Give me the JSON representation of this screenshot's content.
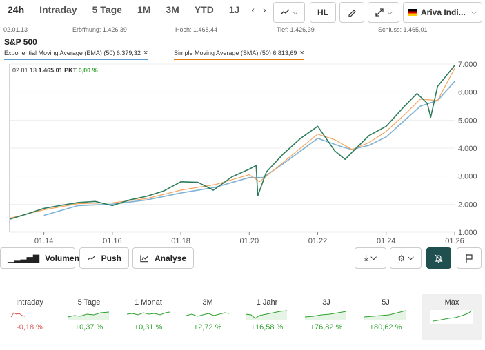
{
  "ranges": [
    "24h",
    "Intraday",
    "5 Tage",
    "1M",
    "3M",
    "YTD",
    "1J"
  ],
  "range_arrows": "‹ ›",
  "toolbar": {
    "hl_label": "HL",
    "exchange_label": "Ariva Indi..."
  },
  "info": {
    "date": "02.01.13",
    "open": "Eröffnung: 1.426,39",
    "high": "Hoch: 1.468,44",
    "low": "Tief: 1.426,39",
    "close": "Schluss: 1.465,01"
  },
  "index_name": "S&P 500",
  "indicators": {
    "ema": "Exponential Moving Average (EMA) (50) 6.379,32",
    "sma": "Simple Moving Average (SMA) (50) 6.813,69",
    "close_x": "×"
  },
  "hover": {
    "date": "02.01.13",
    "value": "1.465,01 PKT",
    "change": "0,00 %"
  },
  "colors": {
    "price": "#2e7d5b",
    "ema": "#7fb3d5",
    "sma": "#f5a35c",
    "positive": "#2ca02c",
    "negative": "#d9534f",
    "dark_button": "#1f4f4f"
  },
  "chart_data": {
    "type": "line",
    "x_ticks": [
      "01.14",
      "01.16",
      "01.18",
      "01.20",
      "01.22",
      "01.24",
      "01.26"
    ],
    "y_ticks": [
      "1.000",
      "2.000",
      "3.000",
      "4.000",
      "5.000",
      "6.000",
      "7.000"
    ],
    "ylim": [
      1000,
      7000
    ],
    "xlim": [
      2013.0,
      2026.0
    ],
    "series": [
      {
        "x": [
          2013.0,
          2013.5,
          2014.0,
          2014.5,
          2015.0,
          2015.5,
          2016.0,
          2016.5,
          2017.0,
          2017.5,
          2018.0,
          2018.5,
          2018.95,
          2019.5,
          2020.0,
          2020.2,
          2020.25,
          2020.5,
          2021.0,
          2021.5,
          2022.0,
          2022.5,
          2022.8,
          2023.0,
          2023.5,
          2024.0,
          2024.5,
          2024.9,
          2025.2,
          2025.3,
          2025.5,
          2026.0
        ],
        "y": [
          1465,
          1650,
          1850,
          1960,
          2060,
          2100,
          1950,
          2150,
          2280,
          2470,
          2800,
          2780,
          2500,
          2980,
          3250,
          3380,
          2300,
          3150,
          3800,
          4350,
          4780,
          3900,
          3600,
          3850,
          4450,
          4780,
          5450,
          5950,
          5600,
          5100,
          6200,
          6950
        ]
      },
      {
        "x": [
          2013.0,
          2014.0,
          2015.0,
          2016.0,
          2017.0,
          2018.0,
          2019.0,
          2020.0,
          2020.3,
          2021.0,
          2022.0,
          2022.5,
          2023.0,
          2023.5,
          2024.0,
          2024.5,
          2025.0,
          2025.5,
          2026.0
        ],
        "y": [
          1500,
          1800,
          2020,
          2050,
          2200,
          2500,
          2700,
          3050,
          2800,
          3500,
          4500,
          4300,
          3950,
          4200,
          4600,
          5150,
          5750,
          5700,
          6850
        ]
      },
      {
        "x": [
          2014.0,
          2015.0,
          2016.0,
          2017.0,
          2018.0,
          2019.0,
          2020.0,
          2020.4,
          2021.0,
          2022.0,
          2022.7,
          2023.0,
          2023.5,
          2024.0,
          2024.5,
          2025.0,
          2025.5,
          2026.0
        ],
        "y": [
          1600,
          1950,
          2000,
          2150,
          2400,
          2600,
          2950,
          2950,
          3450,
          4350,
          4050,
          3950,
          4100,
          4400,
          4950,
          5500,
          5700,
          6380
        ]
      }
    ]
  },
  "actions": {
    "volume": "Volumen",
    "push": "Push",
    "analysis": "Analyse"
  },
  "performance": [
    {
      "label": "Intraday",
      "value": "-0,18 %"
    },
    {
      "label": "5 Tage",
      "value": "+0,37 %"
    },
    {
      "label": "1 Monat",
      "value": "+0,31 %"
    },
    {
      "label": "3M",
      "value": "+2,72 %"
    },
    {
      "label": "1 Jahr",
      "value": "+16,58 %"
    },
    {
      "label": "3J",
      "value": "+76,82 %"
    },
    {
      "label": "5J",
      "value": "+80,62 %"
    },
    {
      "label": "Max",
      "value": ""
    }
  ]
}
